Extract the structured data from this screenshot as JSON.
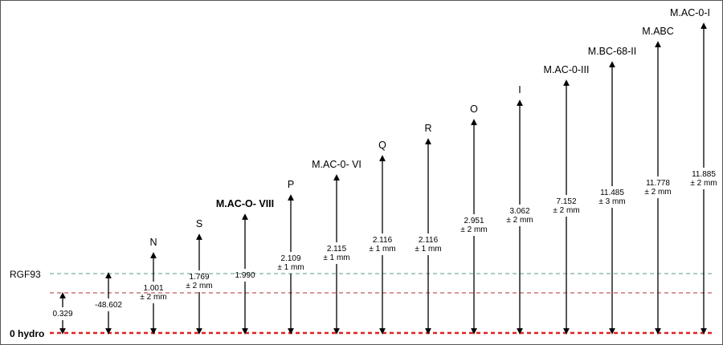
{
  "reference_lines": [
    {
      "id": "rgf93",
      "label": "RGF93",
      "color": "#5a9a8e",
      "bold": false
    },
    {
      "id": "mid",
      "label": "",
      "color": "#b03030",
      "bold": false
    },
    {
      "id": "zero",
      "label": "0 hydro",
      "color": "#e02020",
      "bold": true
    }
  ],
  "markers": [
    {
      "name": "",
      "value": "0.329",
      "tolerance": ""
    },
    {
      "name": "",
      "value": "-48.602",
      "tolerance": ""
    },
    {
      "name": "N",
      "value": "1.001",
      "tolerance": "± 2 mm"
    },
    {
      "name": "S",
      "value": "1.769",
      "tolerance": "± 2 mm"
    },
    {
      "name": "M.AC-O- VIII",
      "value": "1.990",
      "tolerance": "",
      "bold": true
    },
    {
      "name": "P",
      "value": "2.109",
      "tolerance": "± 1 mm"
    },
    {
      "name": "M.AC-0- VI",
      "value": "2.115",
      "tolerance": "± 1 mm"
    },
    {
      "name": "Q",
      "value": "2.116",
      "tolerance": "± 1 mm"
    },
    {
      "name": "R",
      "value": "2.116",
      "tolerance": "± 1 mm"
    },
    {
      "name": "O",
      "value": "2.951",
      "tolerance": "± 2 mm"
    },
    {
      "name": "I",
      "value": "3.062",
      "tolerance": "± 2 mm"
    },
    {
      "name": "M.AC-0-III",
      "value": "7.152",
      "tolerance": "± 2 mm"
    },
    {
      "name": "M.BC-68-II",
      "value": "11.485",
      "tolerance": "± 3 mm"
    },
    {
      "name": "M.ABC",
      "value": "11.778",
      "tolerance": "± 2 mm"
    },
    {
      "name": "M.AC-0-I",
      "value": "11.885",
      "tolerance": "± 2 mm"
    }
  ]
}
